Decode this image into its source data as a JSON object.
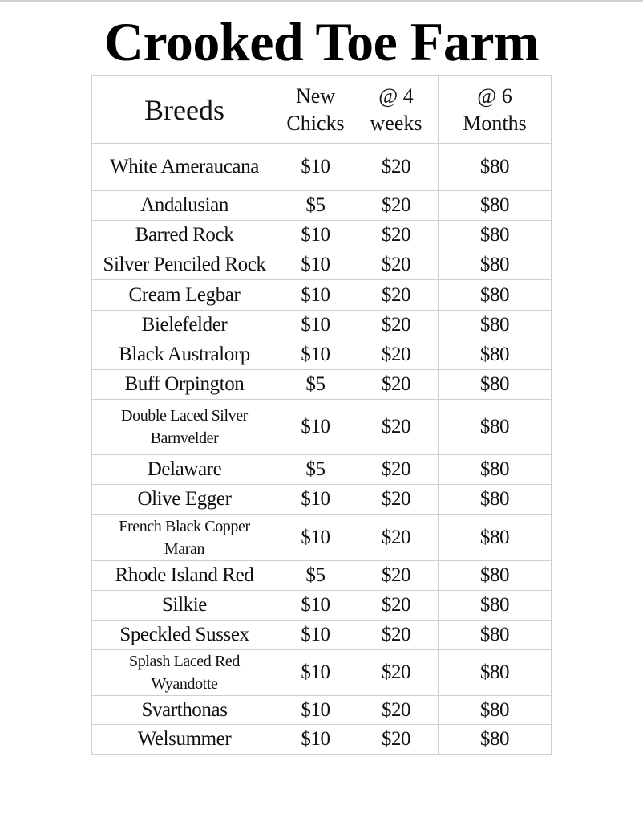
{
  "title": "Crooked Toe Farm",
  "table": {
    "headers": [
      "Breeds",
      "New Chicks",
      "@ 4 weeks",
      "@ 6 Months"
    ],
    "rows": [
      {
        "breed": "White Ameraucana",
        "new_chicks": "$10",
        "four_weeks": "$20",
        "six_months": "$80"
      },
      {
        "breed": "Andalusian",
        "new_chicks": "$5",
        "four_weeks": "$20",
        "six_months": "$80"
      },
      {
        "breed": "Barred Rock",
        "new_chicks": "$10",
        "four_weeks": "$20",
        "six_months": "$80"
      },
      {
        "breed": "Silver Penciled Rock",
        "new_chicks": "$10",
        "four_weeks": "$20",
        "six_months": "$80"
      },
      {
        "breed": "Cream Legbar",
        "new_chicks": "$10",
        "four_weeks": "$20",
        "six_months": "$80"
      },
      {
        "breed": "Bielefelder",
        "new_chicks": "$10",
        "four_weeks": "$20",
        "six_months": "$80"
      },
      {
        "breed": "Black Australorp",
        "new_chicks": "$10",
        "four_weeks": "$20",
        "six_months": "$80"
      },
      {
        "breed": "Buff Orpington",
        "new_chicks": "$5",
        "four_weeks": "$20",
        "six_months": "$80"
      },
      {
        "breed": "Double Laced Silver Barnvelder",
        "new_chicks": "$10",
        "four_weeks": "$20",
        "six_months": "$80"
      },
      {
        "breed": "Delaware",
        "new_chicks": "$5",
        "four_weeks": "$20",
        "six_months": "$80"
      },
      {
        "breed": "Olive Egger",
        "new_chicks": "$10",
        "four_weeks": "$20",
        "six_months": "$80"
      },
      {
        "breed": "French Black Copper Maran",
        "new_chicks": "$10",
        "four_weeks": "$20",
        "six_months": "$80"
      },
      {
        "breed": "Rhode Island Red",
        "new_chicks": "$5",
        "four_weeks": "$20",
        "six_months": "$80"
      },
      {
        "breed": "Silkie",
        "new_chicks": "$10",
        "four_weeks": "$20",
        "six_months": "$80"
      },
      {
        "breed": "Speckled Sussex",
        "new_chicks": "$10",
        "four_weeks": "$20",
        "six_months": "$80"
      },
      {
        "breed": "Splash Laced Red Wyandotte",
        "new_chicks": "$10",
        "four_weeks": "$20",
        "six_months": "$80"
      },
      {
        "breed": "Svarthonas",
        "new_chicks": "$10",
        "four_weeks": "$20",
        "six_months": "$80"
      },
      {
        "breed": "Welsummer",
        "new_chicks": "$10",
        "four_weeks": "$20",
        "six_months": "$80"
      }
    ]
  }
}
